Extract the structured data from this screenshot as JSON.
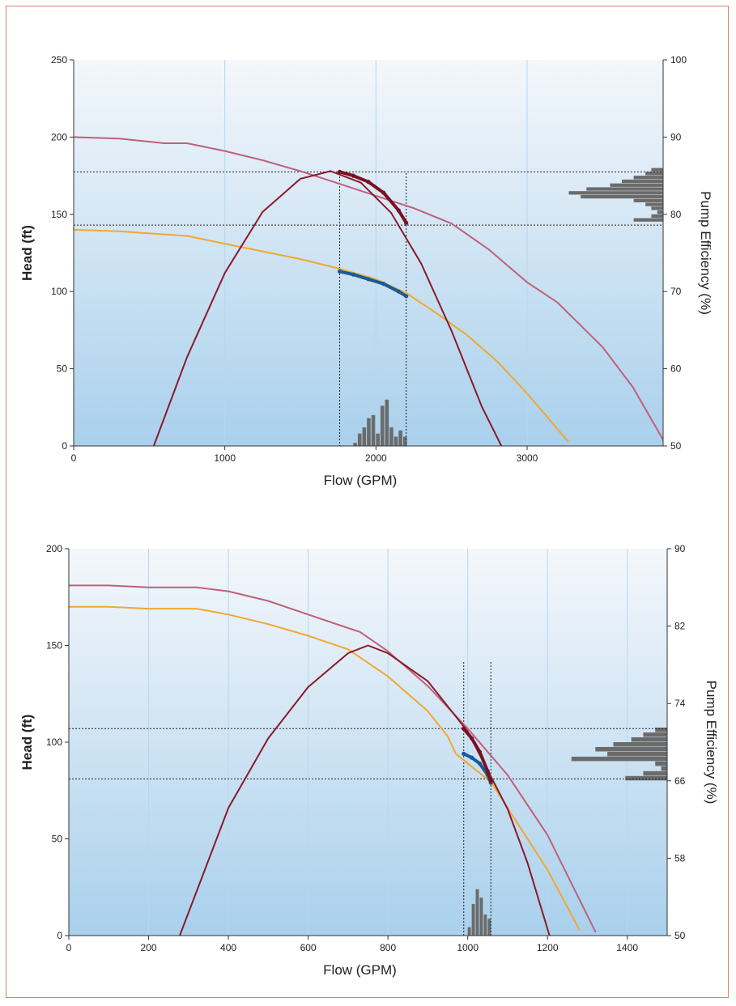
{
  "chart_data": [
    {
      "type": "line",
      "xlabel": "Flow (GPM)",
      "ylabel": "Head (ft)",
      "y2label": "Pump Efficiency (%)",
      "xlim": [
        0,
        3900
      ],
      "ylim": [
        0,
        250
      ],
      "y2lim": [
        50,
        100
      ],
      "xticks": [
        0,
        1000,
        2000,
        3000
      ],
      "yticks": [
        0,
        50,
        100,
        150,
        200,
        250
      ],
      "y2ticks": [
        50,
        60,
        70,
        80,
        90,
        100
      ],
      "grid": true,
      "series": [
        {
          "role": "pump-head-curve-pink",
          "color": "#c0607a",
          "axis": "left",
          "x": [
            0,
            300,
            600,
            750,
            1000,
            1250,
            1500,
            1750,
            2000,
            2250,
            2500,
            2750,
            3000,
            3200,
            3500,
            3700,
            3900
          ],
          "y": [
            200,
            199,
            196,
            196,
            191,
            185,
            178,
            170,
            162,
            154,
            144,
            127,
            106,
            93,
            64,
            38,
            4
          ]
        },
        {
          "role": "pump-head-curve-orange",
          "color": "#f0a830",
          "axis": "left",
          "x": [
            0,
            300,
            600,
            750,
            1000,
            1250,
            1500,
            1750,
            2000,
            2200,
            2400,
            2600,
            2800,
            3000,
            3270
          ],
          "y": [
            140,
            139,
            137,
            136,
            131,
            126,
            121,
            115,
            108,
            99,
            86,
            72,
            55,
            34,
            3
          ]
        },
        {
          "role": "efficiency-curve",
          "color": "#8a1a2a",
          "axis": "right",
          "x": [
            530,
            750,
            1000,
            1250,
            1500,
            1700,
            1900,
            2100,
            2300,
            2500,
            2700,
            2830
          ],
          "y": [
            50,
            61.5,
            72.4,
            80.3,
            84.6,
            85.6,
            84.1,
            80.2,
            73.6,
            64.9,
            55.1,
            50
          ]
        },
        {
          "role": "operating-points-head",
          "color": "#1a5a96",
          "axis": "left",
          "x": [
            1760,
            1850,
            1950,
            2050,
            2150,
            2200
          ],
          "y": [
            113,
            111,
            108,
            105,
            100,
            97
          ]
        },
        {
          "role": "operating-points-efficiency",
          "color": "#7a1020",
          "axis": "right",
          "x": [
            1760,
            1850,
            1950,
            2050,
            2150,
            2200
          ],
          "y": [
            85.5,
            85.0,
            84.2,
            82.8,
            80.5,
            78.9
          ]
        }
      ],
      "reference_lines": {
        "x": [
          1760,
          2200
        ],
        "y2": [
          85.5,
          78.6
        ]
      },
      "histogram_x": {
        "bins": [
          1850,
          1880,
          1910,
          1940,
          1970,
          2000,
          2030,
          2060,
          2090,
          2120,
          2150,
          2180
        ],
        "counts": [
          1,
          4,
          6,
          9,
          10,
          4,
          13,
          15,
          6,
          3,
          5,
          3
        ]
      },
      "histogram_y2": {
        "bins": [
          79,
          79.5,
          80,
          80.5,
          81,
          81.5,
          82,
          82.5,
          83,
          83.5,
          84,
          84.5,
          85,
          85.5
        ],
        "counts": [
          5,
          2,
          1,
          2,
          3,
          5,
          14,
          16,
          13,
          9,
          7,
          5,
          3,
          2
        ]
      }
    },
    {
      "type": "line",
      "xlabel": "Flow (GPM)",
      "ylabel": "Head (ft)",
      "y2label": "Pump Efficiency (%)",
      "xlim": [
        0,
        1500
      ],
      "ylim": [
        0,
        200
      ],
      "y2lim": [
        50,
        90
      ],
      "xticks": [
        0,
        200,
        400,
        600,
        800,
        1000,
        1200,
        1400
      ],
      "yticks": [
        0,
        50,
        100,
        150,
        200
      ],
      "y2ticks": [
        50,
        58,
        66,
        74,
        82,
        90
      ],
      "grid": true,
      "series": [
        {
          "role": "pump-head-curve-pink",
          "color": "#c0607a",
          "axis": "left",
          "x": [
            0,
            100,
            200,
            320,
            400,
            500,
            600,
            700,
            730,
            800,
            900,
            1000,
            1100,
            1200,
            1320
          ],
          "y": [
            181,
            181,
            180,
            180,
            178,
            173,
            166,
            159,
            157,
            147,
            129,
            107,
            83,
            52,
            2
          ]
        },
        {
          "role": "pump-head-curve-orange",
          "color": "#f0a830",
          "axis": "left",
          "x": [
            0,
            100,
            200,
            320,
            400,
            500,
            600,
            700,
            800,
            900,
            950,
            970,
            1000,
            1060,
            1100,
            1200,
            1280
          ],
          "y": [
            170,
            170,
            169,
            169,
            166,
            161,
            155,
            148,
            134,
            116,
            103,
            94,
            89,
            79,
            66,
            34,
            3
          ]
        },
        {
          "role": "efficiency-curve",
          "color": "#8a1a2a",
          "axis": "right",
          "x": [
            278,
            400,
            500,
            600,
            700,
            750,
            800,
            900,
            1000,
            1100,
            1150,
            1205
          ],
          "y": [
            50,
            63.2,
            70.4,
            75.7,
            79.2,
            80.0,
            79.2,
            76.3,
            71.1,
            63.1,
            57.5,
            50
          ]
        },
        {
          "role": "operating-points-head",
          "color": "#1a5a96",
          "axis": "left",
          "x": [
            990,
            1010,
            1030,
            1050,
            1058
          ],
          "y": [
            94,
            92,
            89,
            83,
            79
          ]
        },
        {
          "role": "operating-points-efficiency",
          "color": "#7a1020",
          "axis": "right",
          "x": [
            990,
            1010,
            1030,
            1050,
            1058
          ],
          "y": [
            71.4,
            70.4,
            69.0,
            67.0,
            66.0
          ]
        }
      ],
      "reference_lines": {
        "x": [
          990,
          1058
        ],
        "y2": [
          71.4,
          66.2
        ]
      },
      "histogram_x": {
        "bins": [
          1000,
          1010,
          1020,
          1030,
          1040,
          1050
        ],
        "counts": [
          4,
          15,
          22,
          18,
          10,
          8
        ]
      },
      "histogram_y2": {
        "bins": [
          66,
          66.5,
          67,
          67.5,
          68,
          68.5,
          69,
          69.5,
          70,
          70.5,
          71
        ],
        "counts": [
          7,
          4,
          1,
          2,
          16,
          10,
          12,
          9,
          6,
          4,
          2
        ]
      }
    }
  ]
}
